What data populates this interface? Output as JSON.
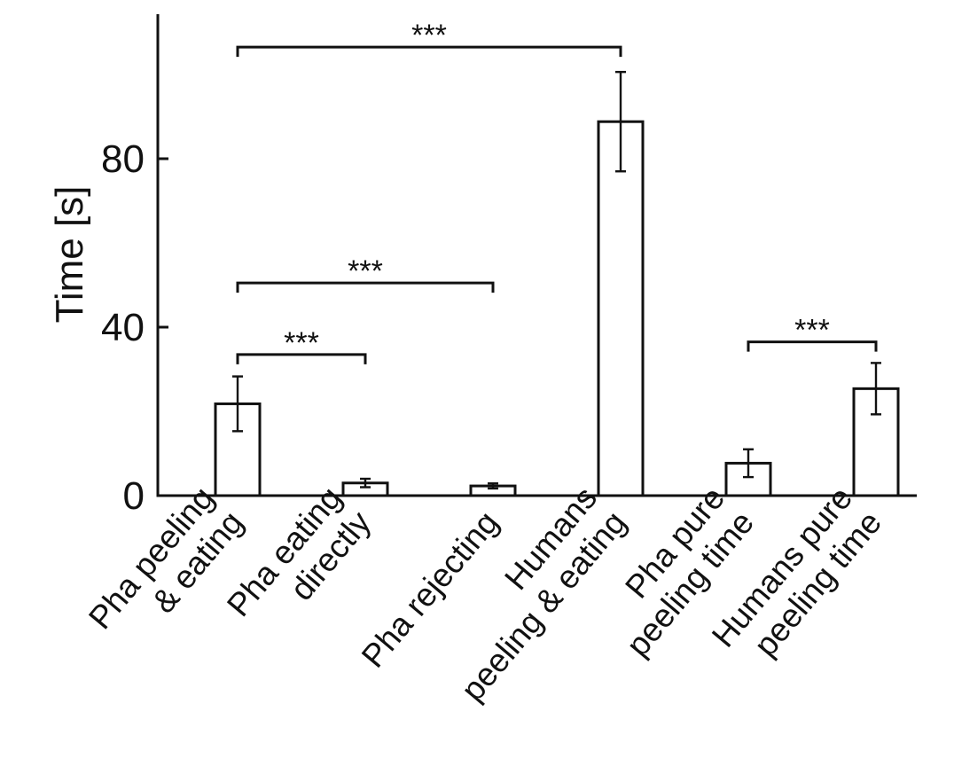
{
  "chart_data": {
    "type": "bar",
    "categories": [
      [
        "Pha peeling",
        "& eating"
      ],
      [
        "Pha eating",
        "directly"
      ],
      [
        "Pha rejecting"
      ],
      [
        "Humans",
        "peeling & eating"
      ],
      [
        "Pha pure",
        "peeling time"
      ],
      [
        "Humans pure",
        "peeling time"
      ]
    ],
    "values": [
      21.8,
      3.0,
      2.3,
      88.8,
      7.7,
      25.4
    ],
    "errors": [
      6.5,
      1.0,
      0.6,
      11.8,
      3.3,
      6.1
    ],
    "ylabel": "Time [s]",
    "yticks": [
      0,
      40,
      80
    ],
    "ylim": [
      0,
      114
    ],
    "significance": [
      {
        "from": 0,
        "to": 3,
        "label": "***",
        "y": 106.5
      },
      {
        "from": 0,
        "to": 2,
        "label": "***",
        "y": 50.5
      },
      {
        "from": 0,
        "to": 1,
        "label": "***",
        "y": 33.5
      },
      {
        "from": 4,
        "to": 5,
        "label": "***",
        "y": 36.5
      }
    ]
  }
}
